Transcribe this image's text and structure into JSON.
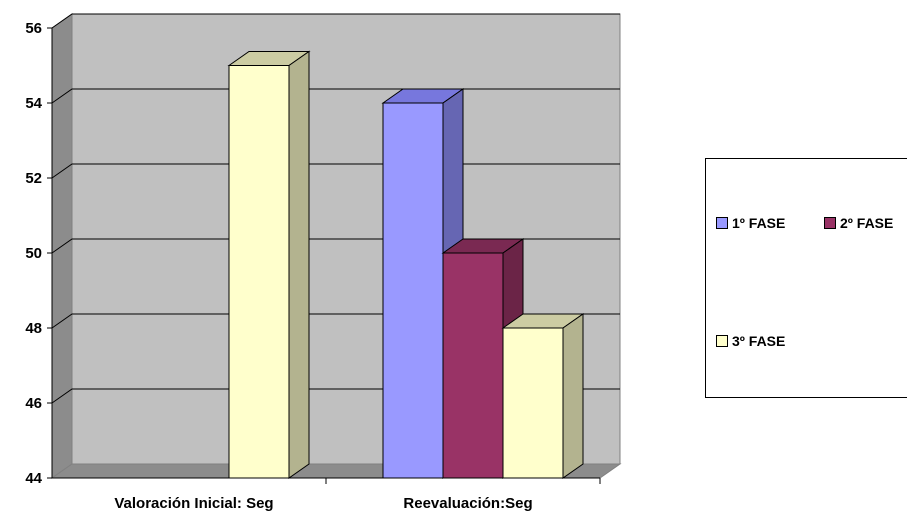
{
  "chart_data": {
    "type": "bar",
    "categories": [
      "Valoración Inicial: Seg",
      "Reevaluación:Seg"
    ],
    "series": [
      {
        "name": "1º FASE",
        "values": [
          null,
          54
        ],
        "color": "#9999FF",
        "side": "#6666B3",
        "top": "#7777DD"
      },
      {
        "name": "2º FASE",
        "values": [
          null,
          50
        ],
        "color": "#993366",
        "side": "#6B2447",
        "top": "#7A2952"
      },
      {
        "name": "3º FASE",
        "values": [
          55,
          48
        ],
        "color": "#FFFFCC",
        "side": "#B3B38F",
        "top": "#CCCCA3"
      }
    ],
    "y_ticks": [
      "44",
      "46",
      "48",
      "50",
      "52",
      "54",
      "56"
    ],
    "ylim": [
      44,
      56
    ],
    "grid": true,
    "legend_position": "right",
    "wall_color": "#C0C0C0"
  }
}
